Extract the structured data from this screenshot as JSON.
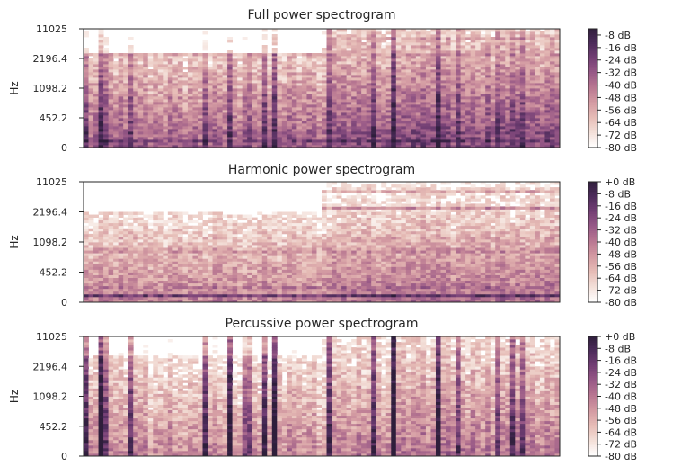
{
  "chart_data": [
    {
      "type": "heatmap",
      "title": "Full power spectrogram",
      "ylabel": "Hz",
      "yticks": [
        "0",
        "452.2",
        "1098.2",
        "2196.4",
        "11025"
      ],
      "colorbar_ticks": [
        "-8 dB",
        "-16 dB",
        "-24 dB",
        "-32 dB",
        "-40 dB",
        "-48 dB",
        "-56 dB",
        "-64 dB",
        "-72 dB",
        "-80 dB"
      ],
      "colorbar_range_db": [
        -80,
        -4
      ]
    },
    {
      "type": "heatmap",
      "title": "Harmonic power spectrogram",
      "ylabel": "Hz",
      "yticks": [
        "0",
        "452.2",
        "1098.2",
        "2196.4",
        "11025"
      ],
      "colorbar_ticks": [
        "+0 dB",
        "-8 dB",
        "-16 dB",
        "-24 dB",
        "-32 dB",
        "-40 dB",
        "-48 dB",
        "-56 dB",
        "-64 dB",
        "-72 dB",
        "-80 dB"
      ],
      "colorbar_range_db": [
        -80,
        0
      ]
    },
    {
      "type": "heatmap",
      "title": "Percussive power spectrogram",
      "ylabel": "Hz",
      "yticks": [
        "0",
        "452.2",
        "1098.2",
        "2196.4",
        "11025"
      ],
      "colorbar_ticks": [
        "+0 dB",
        "-8 dB",
        "-16 dB",
        "-24 dB",
        "-32 dB",
        "-40 dB",
        "-48 dB",
        "-56 dB",
        "-64 dB",
        "-72 dB",
        "-80 dB"
      ],
      "colorbar_range_db": [
        -80,
        0
      ]
    }
  ],
  "colors": {
    "colormap": [
      "#ffffff",
      "#f3dfd8",
      "#e6bcb6",
      "#d39aa2",
      "#b97892",
      "#985987",
      "#733f74",
      "#4d2c5b",
      "#2e1e3b"
    ],
    "axes": "#262626",
    "text": "#262626"
  }
}
